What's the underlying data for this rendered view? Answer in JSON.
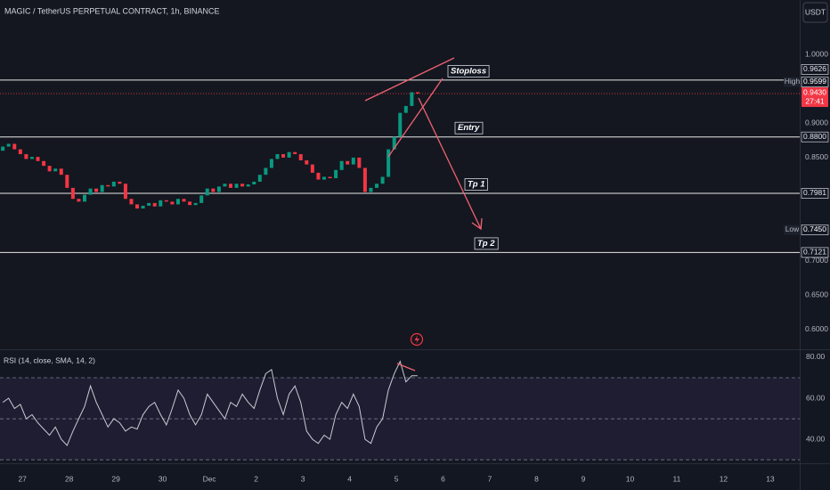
{
  "chart_data": [
    {
      "type": "candlestick",
      "title": "MAGIC / TetherUS PERPETUAL CONTRACT, 1h, BINANCE",
      "currency": "USDT",
      "x": [
        -0.42,
        -0.295,
        -0.17,
        -0.045,
        0.08,
        0.205,
        0.33,
        0.455,
        0.58,
        0.705,
        0.83,
        0.955,
        1.08,
        1.205,
        1.33,
        1.455,
        1.58,
        1.705,
        1.83,
        1.955,
        2.08,
        2.205,
        2.33,
        2.455,
        2.58,
        2.705,
        2.83,
        2.955,
        3.08,
        3.205,
        3.33,
        3.455,
        3.58,
        3.705,
        3.83,
        3.955,
        4.08,
        4.205,
        4.33,
        4.455,
        4.58,
        4.705,
        4.83,
        4.955,
        5.08,
        5.205,
        5.33,
        5.455,
        5.58,
        5.705,
        5.83,
        5.955,
        6.08,
        6.205,
        6.33,
        6.455,
        6.58,
        6.705,
        6.83,
        6.955,
        7.08,
        7.205,
        7.33,
        7.455,
        7.58,
        7.705,
        7.83,
        7.955,
        8.08,
        8.205,
        8.33,
        8.455
      ],
      "open": [
        0.86,
        0.866,
        0.87,
        0.862,
        0.855,
        0.848,
        0.851,
        0.845,
        0.838,
        0.83,
        0.834,
        0.825,
        0.806,
        0.79,
        0.786,
        0.796,
        0.805,
        0.8,
        0.81,
        0.808,
        0.815,
        0.812,
        0.79,
        0.782,
        0.776,
        0.78,
        0.784,
        0.779,
        0.788,
        0.786,
        0.782,
        0.79,
        0.786,
        0.781,
        0.784,
        0.795,
        0.805,
        0.8,
        0.808,
        0.812,
        0.806,
        0.812,
        0.808,
        0.811,
        0.815,
        0.825,
        0.835,
        0.848,
        0.855,
        0.85,
        0.858,
        0.855,
        0.846,
        0.84,
        0.828,
        0.818,
        0.822,
        0.82,
        0.832,
        0.845,
        0.84,
        0.85,
        0.835,
        0.8,
        0.806,
        0.812,
        0.822,
        0.862,
        0.88,
        0.915,
        0.925,
        0.945
      ],
      "high": {
        "name": "High",
        "value": 0.9599,
        "label": "0.9599"
      },
      "low": {
        "name": "Low",
        "value": 0.745,
        "label": "0.7450"
      },
      "close": [
        0.866,
        0.87,
        0.862,
        0.855,
        0.848,
        0.851,
        0.845,
        0.838,
        0.83,
        0.834,
        0.825,
        0.806,
        0.79,
        0.786,
        0.796,
        0.805,
        0.8,
        0.81,
        0.808,
        0.815,
        0.812,
        0.79,
        0.782,
        0.776,
        0.78,
        0.784,
        0.779,
        0.788,
        0.786,
        0.782,
        0.79,
        0.786,
        0.781,
        0.784,
        0.795,
        0.805,
        0.8,
        0.808,
        0.812,
        0.806,
        0.812,
        0.808,
        0.811,
        0.815,
        0.825,
        0.835,
        0.848,
        0.855,
        0.85,
        0.858,
        0.855,
        0.846,
        0.84,
        0.828,
        0.818,
        0.822,
        0.82,
        0.832,
        0.845,
        0.84,
        0.85,
        0.835,
        0.8,
        0.806,
        0.812,
        0.822,
        0.862,
        0.88,
        0.915,
        0.925,
        0.945,
        0.943
      ],
      "up_color": "#089981",
      "down_color": "#f23645",
      "xlim": [
        -0.48,
        16.63
      ],
      "xticks": [
        {
          "value": 0,
          "label": "27"
        },
        {
          "value": 1,
          "label": "28"
        },
        {
          "value": 2,
          "label": "29"
        },
        {
          "value": 3,
          "label": "30"
        },
        {
          "value": 4,
          "label": "Dec"
        },
        {
          "value": 5,
          "label": "2"
        },
        {
          "value": 6,
          "label": "3"
        },
        {
          "value": 7,
          "label": "4"
        },
        {
          "value": 8,
          "label": "5"
        },
        {
          "value": 9,
          "label": "6"
        },
        {
          "value": 10,
          "label": "7"
        },
        {
          "value": 11,
          "label": "8"
        },
        {
          "value": 12,
          "label": "9"
        },
        {
          "value": 13,
          "label": "10"
        },
        {
          "value": 14,
          "label": "11"
        },
        {
          "value": 15,
          "label": "12"
        },
        {
          "value": 16,
          "label": "13"
        }
      ],
      "ylim": [
        0.5715,
        1.079
      ],
      "yticks": [
        {
          "value": 1.0,
          "label": "1.0000"
        },
        {
          "value": 0.9,
          "label": "0.9000"
        },
        {
          "value": 0.85,
          "label": "0.8500"
        },
        {
          "value": 0.7,
          "label": "0.7000"
        },
        {
          "value": 0.65,
          "label": "0.6500"
        },
        {
          "value": 0.6,
          "label": "0.6000"
        }
      ],
      "levels": {
        "names": [
          "Stoploss",
          "Entry",
          "Tp 1",
          "Tp 2"
        ],
        "values": [
          0.9626,
          0.88,
          0.7981,
          0.7121
        ],
        "value_labels": [
          "0.9626",
          "0.8800",
          "0.7981",
          "0.7121"
        ]
      },
      "last": {
        "value": 0.943,
        "label": "0.9430",
        "countdown": "27:41"
      }
    },
    {
      "type": "line",
      "title": "RSI (14, close, SMA, 14, 2)",
      "color": "#c9cbd1",
      "values": [
        58,
        60,
        55,
        57,
        50,
        52,
        48,
        45,
        42,
        46,
        40,
        37,
        44,
        50,
        56,
        66,
        58,
        52,
        46,
        50,
        48,
        44,
        46,
        45,
        52,
        56,
        58,
        52,
        47,
        55,
        64,
        60,
        52,
        47,
        52,
        62,
        58,
        54,
        50,
        58,
        56,
        62,
        58,
        55,
        64,
        72,
        74,
        60,
        52,
        62,
        66,
        58,
        44,
        40,
        38,
        42,
        40,
        52,
        58,
        55,
        62,
        56,
        40,
        38,
        46,
        50,
        64,
        72,
        78,
        68,
        71,
        71
      ],
      "ylim": [
        28.3,
        83.9
      ],
      "yticks": [
        {
          "value": 80,
          "label": "80.00"
        },
        {
          "value": 60,
          "label": "60.00"
        },
        {
          "value": 40,
          "label": "40.00"
        }
      ],
      "levels": [
        30,
        50,
        70
      ]
    }
  ]
}
